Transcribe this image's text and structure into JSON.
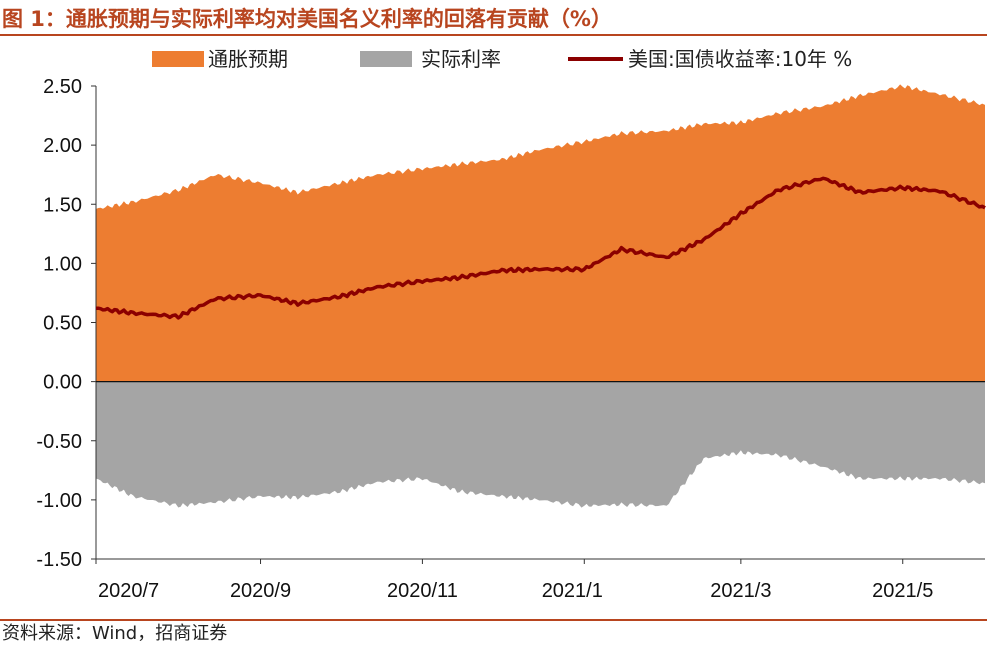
{
  "title": "图 1：通胀预期与实际利率均对美国名义利率的回落有贡献（%）",
  "source": "资料来源：Wind，招商证券",
  "colors": {
    "breakeven": "#ED7D31",
    "real": "#A5A5A5",
    "nominal": "#8B0000",
    "accent": "#B8451F"
  },
  "chart_data": {
    "type": "area",
    "title": "图 1：通胀预期与实际利率均对美国名义利率的回落有贡献（%）",
    "xlabel": "",
    "ylabel": "",
    "ylim": [
      -1.5,
      2.5
    ],
    "yticks": [
      2.5,
      2.0,
      1.5,
      1.0,
      0.5,
      0.0,
      -0.5,
      -1.0,
      -1.5
    ],
    "ytick_labels": [
      "2.50",
      "2.00",
      "1.50",
      "1.00",
      "0.50",
      "0.00",
      "-0.50",
      "-1.00",
      "-1.50"
    ],
    "xticks": [
      "2020/7",
      "2020/9",
      "2020/11",
      "2021/1",
      "2021/3",
      "2021/5"
    ],
    "legend_position": "top",
    "grid": false,
    "x": [
      "2020-07-01",
      "2020-07-15",
      "2020-08-01",
      "2020-08-15",
      "2020-09-01",
      "2020-09-15",
      "2020-10-01",
      "2020-10-15",
      "2020-11-01",
      "2020-11-15",
      "2020-12-01",
      "2020-12-15",
      "2021-01-01",
      "2021-01-15",
      "2021-02-01",
      "2021-02-15",
      "2021-03-01",
      "2021-03-15",
      "2021-04-01",
      "2021-04-15",
      "2021-05-01",
      "2021-05-15",
      "2021-06-01"
    ],
    "series": [
      {
        "name": "通胀预期",
        "kind": "area",
        "values": [
          1.46,
          1.52,
          1.62,
          1.75,
          1.68,
          1.6,
          1.68,
          1.75,
          1.8,
          1.84,
          1.88,
          1.96,
          2.03,
          2.1,
          2.12,
          2.18,
          2.19,
          2.27,
          2.33,
          2.42,
          2.5,
          2.43,
          2.34
        ]
      },
      {
        "name": "实际利率",
        "kind": "area",
        "values": [
          -0.82,
          -0.97,
          -1.05,
          -1.02,
          -0.97,
          -0.98,
          -0.93,
          -0.85,
          -0.82,
          -0.93,
          -0.97,
          -1.0,
          -1.05,
          -1.04,
          -1.05,
          -0.65,
          -0.6,
          -0.62,
          -0.72,
          -0.82,
          -0.82,
          -0.82,
          -0.86
        ]
      },
      {
        "name": "美国:国债收益率:10年",
        "kind": "line",
        "values": [
          0.62,
          0.58,
          0.55,
          0.7,
          0.73,
          0.66,
          0.72,
          0.8,
          0.85,
          0.88,
          0.94,
          0.95,
          0.95,
          1.12,
          1.05,
          1.2,
          1.42,
          1.62,
          1.72,
          1.6,
          1.64,
          1.61,
          1.47
        ]
      }
    ]
  }
}
